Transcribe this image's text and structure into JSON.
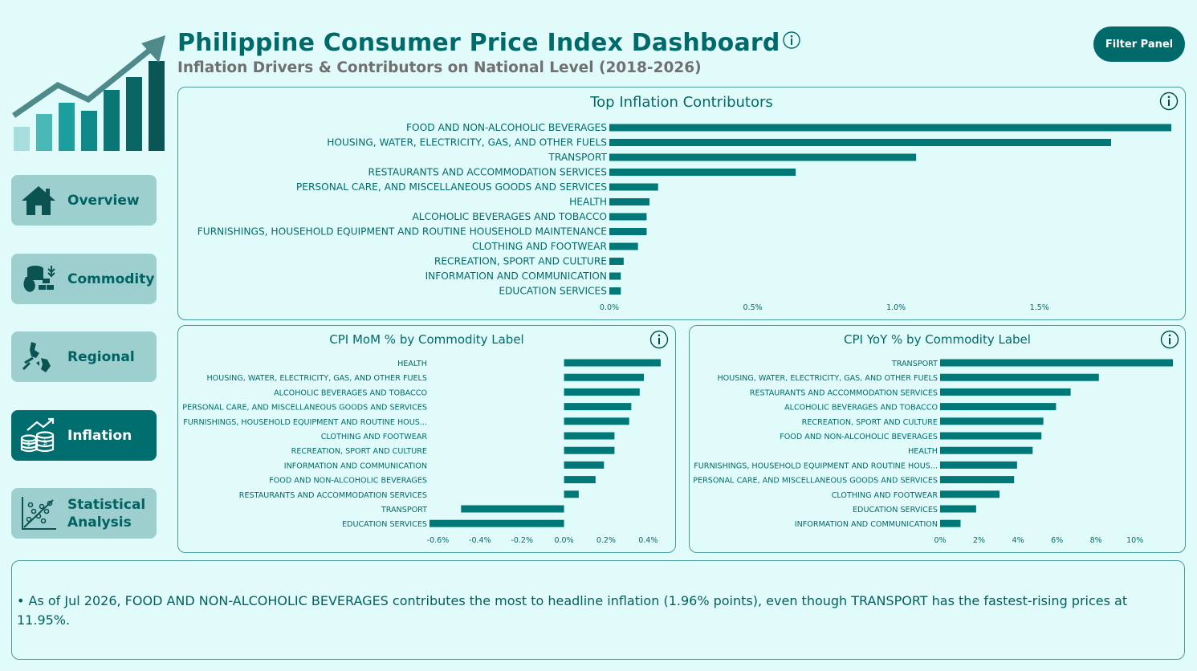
{
  "header": {
    "title": "Philippine Consumer Price Index Dashboard",
    "subtitle": "Inflation Drivers & Contributors on National Level (2018-2026)",
    "filter_button": "Filter Panel"
  },
  "nav": [
    {
      "label": "Overview",
      "icon": "home-icon",
      "active": false
    },
    {
      "label": "Commodity",
      "icon": "commodity-icon",
      "active": false
    },
    {
      "label": "Regional",
      "icon": "map-icon",
      "active": false
    },
    {
      "label": "Inflation",
      "icon": "coins-icon",
      "active": true
    },
    {
      "label": "Statistical\nAnalysis",
      "icon": "scatter-plot-icon",
      "active": false
    }
  ],
  "colors": {
    "accent": "#006a6a",
    "bar": "#017878",
    "background": "#e1fbfb",
    "nav_inactive": "#9ecfcf"
  },
  "chart_data": [
    {
      "type": "bar",
      "orientation": "horizontal",
      "title": "Top Inflation Contributors",
      "categories": [
        "FOOD AND NON-ALCOHOLIC BEVERAGES",
        "HOUSING, WATER, ELECTRICITY, GAS, AND OTHER FUELS",
        "TRANSPORT",
        "RESTAURANTS AND ACCOMMODATION SERVICES",
        "PERSONAL CARE, AND MISCELLANEOUS GOODS AND SERVICES",
        "HEALTH",
        "ALCOHOLIC BEVERAGES AND TOBACCO",
        "FURNISHINGS, HOUSEHOLD EQUIPMENT AND ROUTINE HOUSEHOLD MAINTENANCE",
        "CLOTHING AND FOOTWEAR",
        "RECREATION, SPORT AND CULTURE",
        "INFORMATION AND COMMUNICATION",
        "EDUCATION SERVICES"
      ],
      "values": [
        1.96,
        1.75,
        1.07,
        0.65,
        0.17,
        0.14,
        0.13,
        0.13,
        0.1,
        0.05,
        0.04,
        0.04
      ],
      "xlim": [
        0,
        1.96
      ],
      "ticks": [
        0,
        0.5,
        1.0,
        1.5
      ],
      "tick_labels": [
        "0.0%",
        "0.5%",
        "1.0%",
        "1.5%"
      ]
    },
    {
      "type": "bar",
      "orientation": "horizontal",
      "title": "CPI MoM % by Commodity Label",
      "categories": [
        "HEALTH",
        "HOUSING, WATER, ELECTRICITY, GAS, AND OTHER FUELS",
        "ALCOHOLIC BEVERAGES AND TOBACCO",
        "PERSONAL CARE, AND MISCELLANEOUS GOODS AND SERVICES",
        "FURNISHINGS, HOUSEHOLD EQUIPMENT AND ROUTINE HOUS...",
        "CLOTHING AND FOOTWEAR",
        "RECREATION, SPORT AND CULTURE",
        "INFORMATION AND COMMUNICATION",
        "FOOD AND NON-ALCOHOLIC BEVERAGES",
        "RESTAURANTS AND ACCOMMODATION SERVICES",
        "TRANSPORT",
        "EDUCATION SERVICES"
      ],
      "values": [
        0.46,
        0.38,
        0.36,
        0.32,
        0.31,
        0.24,
        0.24,
        0.19,
        0.15,
        0.07,
        -0.49,
        -0.64
      ],
      "xlim": [
        -0.64,
        0.46
      ],
      "ticks": [
        -0.6,
        -0.4,
        -0.2,
        0.0,
        0.2,
        0.4
      ],
      "tick_labels": [
        "-0.6%",
        "-0.4%",
        "-0.2%",
        "0.0%",
        "0.2%",
        "0.4%"
      ]
    },
    {
      "type": "bar",
      "orientation": "horizontal",
      "title": "CPI YoY % by Commodity Label",
      "categories": [
        "TRANSPORT",
        "HOUSING, WATER, ELECTRICITY, GAS, AND OTHER FUELS",
        "RESTAURANTS AND ACCOMMODATION SERVICES",
        "ALCOHOLIC BEVERAGES AND TOBACCO",
        "RECREATION, SPORT AND CULTURE",
        "FOOD AND NON-ALCOHOLIC BEVERAGES",
        "HEALTH",
        "FURNISHINGS, HOUSEHOLD EQUIPMENT AND ROUTINE HOUS...",
        "PERSONAL CARE, AND MISCELLANEOUS GOODS AND SERVICES",
        "CLOTHING AND FOOTWEAR",
        "EDUCATION SERVICES",
        "INFORMATION AND COMMUNICATION"
      ],
      "values": [
        11.95,
        8.15,
        6.7,
        5.95,
        5.3,
        5.2,
        4.75,
        3.95,
        3.8,
        3.05,
        1.85,
        1.05
      ],
      "xlim": [
        0,
        11.95
      ],
      "ticks": [
        0,
        2,
        4,
        6,
        8,
        10
      ],
      "tick_labels": [
        "0%",
        "2%",
        "4%",
        "6%",
        "8%",
        "10%"
      ]
    }
  ],
  "insight": {
    "text": "• As of Jul 2026, FOOD AND NON-ALCOHOLIC BEVERAGES contributes the most to headline inflation (1.96% points), even though TRANSPORT has the fastest-rising prices at 11.95%."
  }
}
